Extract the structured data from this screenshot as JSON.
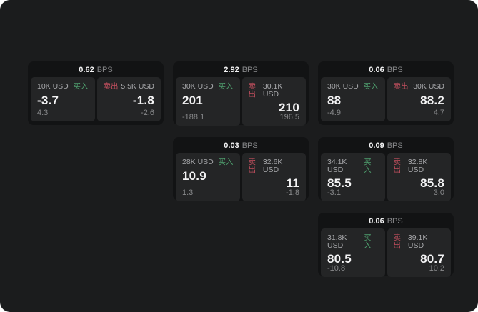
{
  "labels": {
    "bps": "BPS",
    "buy": "买入",
    "sell": "卖出"
  },
  "colors": {
    "canvas_bg": "#1b1c1d",
    "card_bg": "#121314",
    "panel_bg": "#242526",
    "buy_green": "#4e9e6d",
    "sell_red": "#c14f5e",
    "text_primary": "#f4f4f5",
    "text_muted": "#87888a"
  },
  "cards": [
    {
      "spread": "0.62",
      "buy": {
        "size": "10K USD",
        "price": "-3.7",
        "delta": "4.3"
      },
      "sell": {
        "size": "5.5K USD",
        "price": "-1.8",
        "delta": "-2.6"
      }
    },
    {
      "spread": "2.92",
      "buy": {
        "size": "30K USD",
        "price": "201",
        "delta": "-188.1"
      },
      "sell": {
        "size": "30.1K USD",
        "price": "210",
        "delta": "196.5"
      }
    },
    {
      "spread": "0.06",
      "buy": {
        "size": "30K USD",
        "price": "88",
        "delta": "-4.9"
      },
      "sell": {
        "size": "30K USD",
        "price": "88.2",
        "delta": "4.7"
      }
    },
    {
      "spread": "0.03",
      "buy": {
        "size": "28K USD",
        "price": "10.9",
        "delta": "1.3"
      },
      "sell": {
        "size": "32.6K USD",
        "price": "11",
        "delta": "-1.8"
      }
    },
    {
      "spread": "0.09",
      "buy": {
        "size": "34.1K USD",
        "price": "85.5",
        "delta": "-3.1"
      },
      "sell": {
        "size": "32.8K USD",
        "price": "85.8",
        "delta": "3.0"
      }
    },
    {
      "spread": "0.06",
      "buy": {
        "size": "31.8K USD",
        "price": "80.5",
        "delta": "-10.8"
      },
      "sell": {
        "size": "39.1K USD",
        "price": "80.7",
        "delta": "10.2"
      }
    }
  ]
}
